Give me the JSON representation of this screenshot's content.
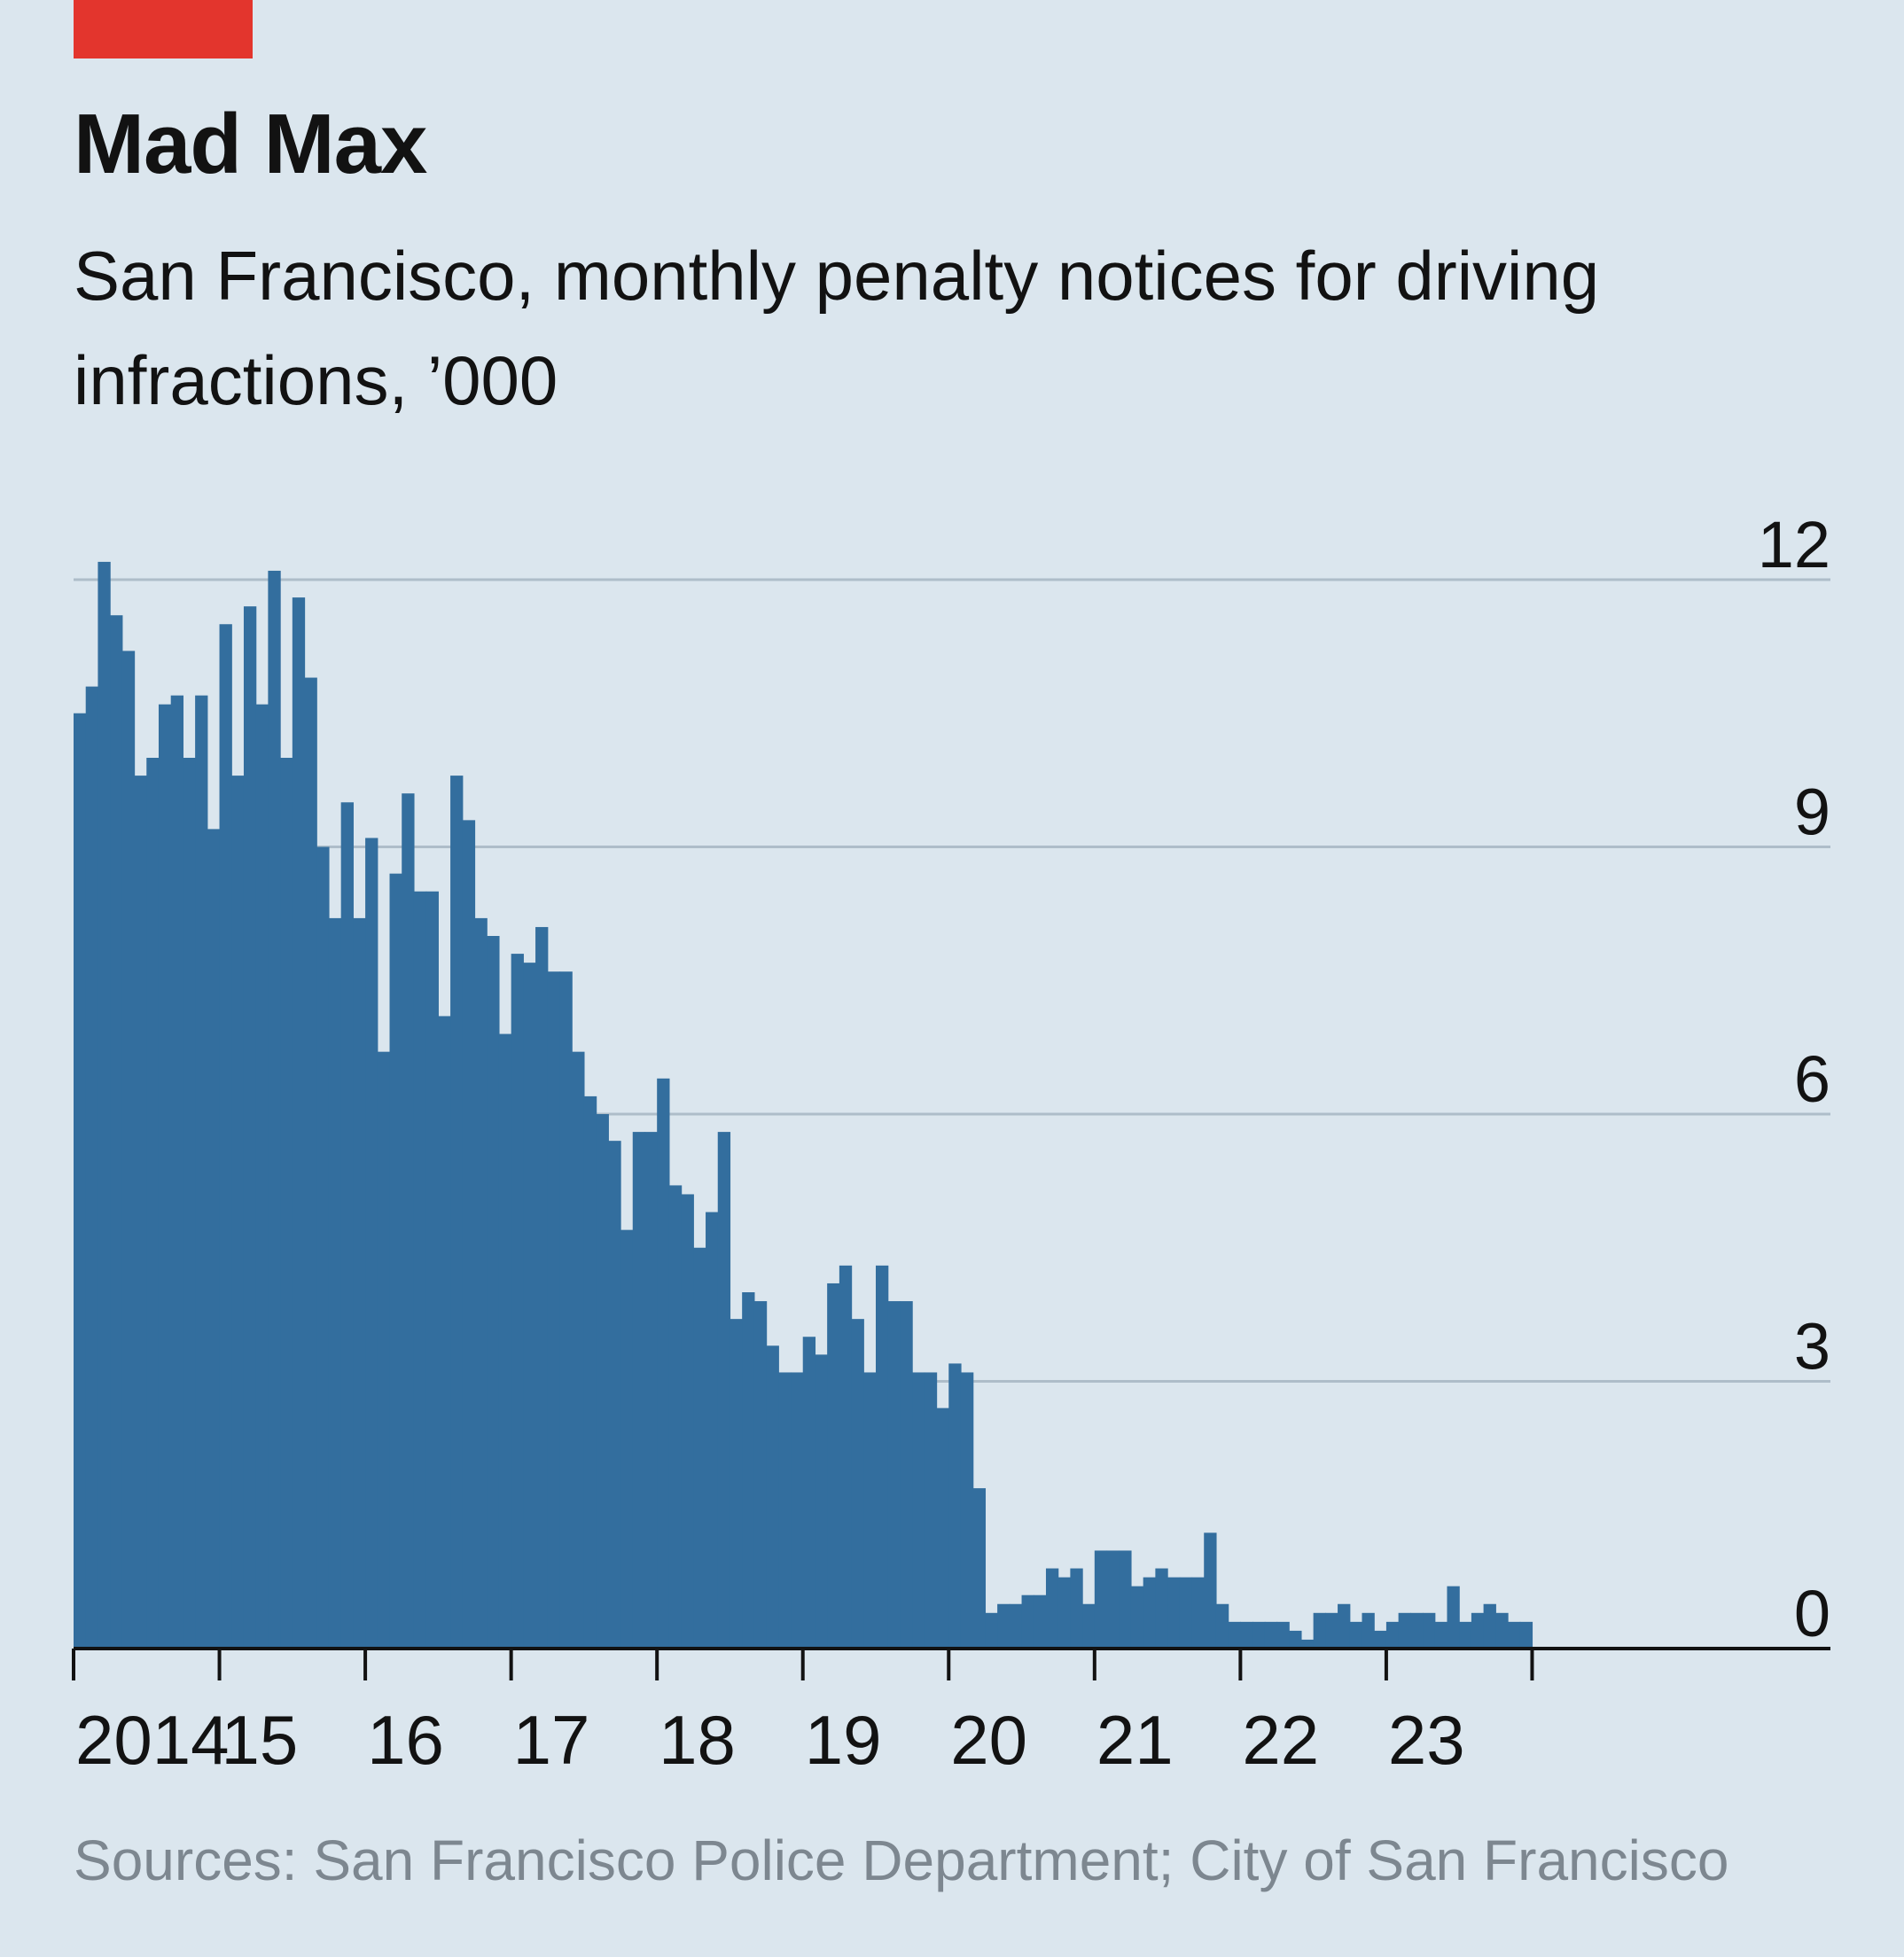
{
  "header": {
    "title": "Mad Max",
    "subtitle": "San Francisco, monthly penalty notices for driving infractions, ’000"
  },
  "footer": {
    "source": "Sources: San Francisco Police Department; City of San Francisco"
  },
  "colors": {
    "accent": "#e3352d",
    "bar": "#336e9e",
    "background": "#dbe6ee",
    "grid": "#aebdc9"
  },
  "chart_data": {
    "type": "bar",
    "title": "Mad Max",
    "subtitle": "San Francisco, monthly penalty notices for driving infractions, ’000",
    "xlabel": "",
    "ylabel": "",
    "ylim": [
      0,
      12
    ],
    "yticks": [
      0,
      3,
      6,
      9,
      12
    ],
    "ytick_labels": [
      "0",
      "3",
      "6",
      "9",
      "12"
    ],
    "xtick_labels": [
      "2014",
      "15",
      "16",
      "17",
      "18",
      "19",
      "20",
      "21",
      "22",
      "23"
    ],
    "xlim_months": [
      0,
      132
    ],
    "grid": true,
    "legend": "none",
    "series": [
      {
        "name": "",
        "start": "2014-01",
        "frequency": "monthly",
        "values": [
          10.5,
          10.8,
          12.2,
          11.6,
          11.2,
          9.8,
          10.0,
          10.6,
          10.7,
          10.0,
          10.7,
          9.2,
          11.5,
          9.8,
          11.7,
          10.6,
          12.1,
          10.0,
          11.8,
          10.9,
          9.0,
          8.2,
          9.5,
          8.2,
          9.1,
          6.7,
          8.7,
          9.6,
          8.5,
          8.5,
          7.1,
          9.8,
          9.3,
          8.2,
          8.0,
          6.9,
          7.8,
          7.7,
          8.1,
          7.6,
          7.6,
          6.7,
          6.2,
          6.0,
          5.7,
          4.7,
          5.8,
          5.8,
          6.4,
          5.2,
          5.1,
          4.5,
          4.9,
          5.8,
          3.7,
          4.0,
          3.9,
          3.4,
          3.1,
          3.1,
          3.5,
          3.3,
          4.1,
          4.3,
          3.7,
          3.1,
          4.3,
          3.9,
          3.9,
          3.1,
          3.1,
          2.7,
          3.2,
          3.1,
          1.8,
          0.4,
          0.5,
          0.5,
          0.6,
          0.6,
          0.9,
          0.8,
          0.9,
          0.5,
          1.1,
          1.1,
          1.1,
          0.7,
          0.8,
          0.9,
          0.8,
          0.8,
          0.8,
          1.3,
          0.5,
          0.3,
          0.3,
          0.3,
          0.3,
          0.3,
          0.2,
          0.1,
          0.4,
          0.4,
          0.5,
          0.3,
          0.4,
          0.2,
          0.3,
          0.4,
          0.4,
          0.4,
          0.3,
          0.7,
          0.3,
          0.4,
          0.5,
          0.4,
          0.3,
          0.3
        ]
      }
    ]
  }
}
